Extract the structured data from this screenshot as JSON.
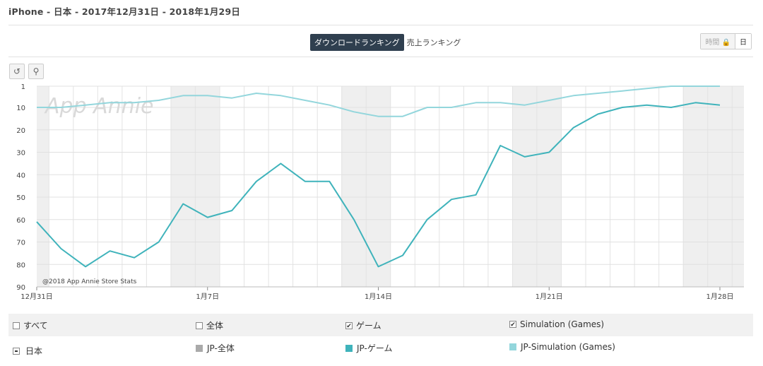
{
  "header": {
    "title": "iPhone - 日本 - 2017年12月31日 - 2018年1月29日"
  },
  "tabs": [
    {
      "label": "ダウンロードランキング",
      "active": true
    },
    {
      "label": "売上ランキング",
      "active": false
    }
  ],
  "granularity": {
    "hour": "時間",
    "day": "日"
  },
  "toolbar": {
    "reset_icon": "reset-icon",
    "zoom_icon": "zoom-icon"
  },
  "chart_data": {
    "type": "line",
    "x": [
      "12/31",
      "1/1",
      "1/2",
      "1/3",
      "1/4",
      "1/5",
      "1/6",
      "1/7",
      "1/8",
      "1/9",
      "1/10",
      "1/11",
      "1/12",
      "1/13",
      "1/14",
      "1/15",
      "1/16",
      "1/17",
      "1/18",
      "1/19",
      "1/20",
      "1/21",
      "1/22",
      "1/23",
      "1/24",
      "1/25",
      "1/26",
      "1/27",
      "1/28"
    ],
    "xtick_labels": [
      "12月31日",
      "1月7日",
      "1月14日",
      "1月21日",
      "1月28日"
    ],
    "ytick_labels": [
      "1",
      "10",
      "20",
      "30",
      "40",
      "50",
      "60",
      "70",
      "80",
      "90"
    ],
    "ylim": [
      1,
      90
    ],
    "yreversed": true,
    "series": [
      {
        "name": "JP-ゲーム",
        "color": "#3fb3bb",
        "values": [
          61,
          73,
          81,
          74,
          77,
          70,
          53,
          59,
          56,
          43,
          35,
          43,
          43,
          60,
          81,
          76,
          60,
          51,
          49,
          27,
          32,
          30,
          19,
          13,
          10,
          9,
          10,
          8,
          9
        ]
      },
      {
        "name": "JP-Simulation (Games)",
        "color": "#93d6dc",
        "values": [
          10,
          10,
          9,
          8,
          8,
          7,
          5,
          5,
          6,
          4,
          5,
          7,
          9,
          12,
          14,
          14,
          10,
          10,
          8,
          8,
          9,
          7,
          5,
          4,
          3,
          2,
          1,
          1,
          1
        ]
      }
    ],
    "watermark": "App Annie",
    "copyright": "@2018 App Annie Store Stats"
  },
  "legend": {
    "row1": [
      {
        "label": "すべて",
        "checked": false
      },
      {
        "label": "全体",
        "checked": false
      },
      {
        "label": "ゲーム",
        "checked": true
      },
      {
        "label": "Simulation (Games)",
        "checked": true
      }
    ],
    "row2": {
      "country": "日本",
      "items": [
        {
          "label": "JP-全体",
          "color": "#aaaaaa"
        },
        {
          "label": "JP-ゲーム",
          "color": "#3fb3bb"
        },
        {
          "label": "JP-Simulation (Games)",
          "color": "#93d6dc"
        }
      ]
    }
  }
}
